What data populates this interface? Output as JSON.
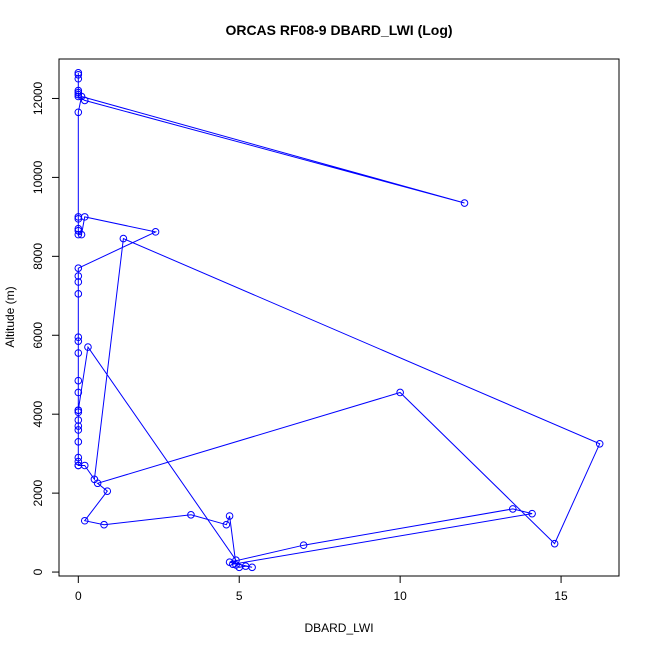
{
  "chart_data": {
    "type": "line",
    "title": "ORCAS RF08-9 DBARD_LWI (Log)",
    "xlabel": "DBARD_LWI",
    "ylabel": "Altitude (m)",
    "xlim": [
      -0.6,
      16.8
    ],
    "ylim": [
      -100,
      13000
    ],
    "xticks": [
      0,
      5,
      10,
      15
    ],
    "yticks": [
      0,
      2000,
      4000,
      6000,
      8000,
      10000,
      12000
    ],
    "grid": false,
    "color": "#0000ff",
    "marker": "open-circle",
    "points": [
      [
        0.0,
        12650
      ],
      [
        0.0,
        12600
      ],
      [
        0.0,
        12500
      ],
      [
        0.0,
        12200
      ],
      [
        0.0,
        12150
      ],
      [
        0.0,
        12100
      ],
      [
        0.0,
        12050
      ],
      [
        0.2,
        11950
      ],
      [
        12.0,
        9350
      ],
      [
        0.1,
        12050
      ],
      [
        0.0,
        11650
      ],
      [
        0.0,
        9000
      ],
      [
        0.0,
        8950
      ],
      [
        0.0,
        8700
      ],
      [
        0.0,
        8650
      ],
      [
        0.0,
        8550
      ],
      [
        0.1,
        8550
      ],
      [
        0.2,
        9000
      ],
      [
        2.4,
        8620
      ],
      [
        0.0,
        7700
      ],
      [
        0.0,
        7500
      ],
      [
        0.0,
        7350
      ],
      [
        0.0,
        7050
      ],
      [
        0.0,
        5950
      ],
      [
        0.0,
        5850
      ],
      [
        0.0,
        5550
      ],
      [
        0.0,
        4850
      ],
      [
        0.0,
        4550
      ],
      [
        0.0,
        4100
      ],
      [
        0.0,
        4050
      ],
      [
        0.0,
        3850
      ],
      [
        0.0,
        3700
      ],
      [
        0.0,
        3600
      ],
      [
        0.0,
        3300
      ],
      [
        0.0,
        2900
      ],
      [
        0.0,
        2800
      ],
      [
        0.0,
        2700
      ],
      [
        0.2,
        2700
      ],
      [
        0.5,
        2350
      ],
      [
        1.4,
        8450
      ],
      [
        16.2,
        3250
      ],
      [
        14.8,
        720
      ],
      [
        10.0,
        4550
      ],
      [
        0.6,
        2250
      ],
      [
        0.9,
        2050
      ],
      [
        0.2,
        1300
      ],
      [
        0.8,
        1200
      ],
      [
        3.5,
        1450
      ],
      [
        4.6,
        1200
      ],
      [
        4.7,
        1420
      ],
      [
        4.9,
        180
      ],
      [
        5.0,
        120
      ],
      [
        5.2,
        150
      ],
      [
        5.4,
        120
      ],
      [
        4.7,
        250
      ],
      [
        7.0,
        680
      ],
      [
        13.5,
        1600
      ],
      [
        14.1,
        1480
      ],
      [
        4.8,
        200
      ],
      [
        4.9,
        300
      ],
      [
        0.3,
        5700
      ],
      [
        0.0,
        4100
      ],
      [
        0.0,
        2700
      ]
    ]
  }
}
